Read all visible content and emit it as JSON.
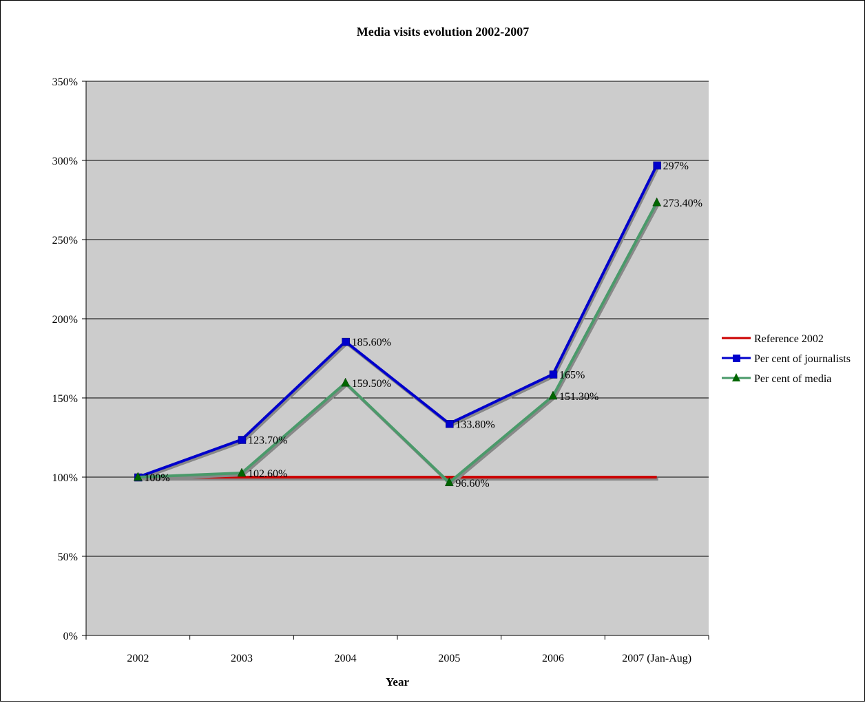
{
  "chart_data": {
    "type": "line",
    "title": "Media visits evolution 2002-2007",
    "xlabel": "Year",
    "ylabel": "",
    "categories": [
      "2002",
      "2003",
      "2004",
      "2005",
      "2006",
      "2007 (Jan-Aug)"
    ],
    "y_ticks": [
      "0%",
      "50%",
      "100%",
      "150%",
      "200%",
      "250%",
      "300%",
      "350%"
    ],
    "ylim": [
      0,
      350
    ],
    "grid": true,
    "legend_position": "right",
    "series": [
      {
        "name": "Reference 2002",
        "color": "#cc0000",
        "marker": "none",
        "values": [
          100,
          100,
          100,
          100,
          100,
          100
        ],
        "labels": [
          "",
          "",
          "",
          "",
          "",
          ""
        ]
      },
      {
        "name": "Per cent of journalists",
        "color": "#0000cc",
        "marker": "square",
        "values": [
          100,
          123.7,
          185.6,
          133.8,
          165,
          297
        ],
        "labels": [
          "100%",
          "123.70%",
          "185.60%",
          "133.80%",
          "165%",
          "297%"
        ]
      },
      {
        "name": "Per cent of media",
        "color": "#4a9a6a",
        "marker_color": "#006600",
        "marker": "triangle",
        "values": [
          100,
          102.6,
          159.5,
          96.6,
          151.3,
          273.4
        ],
        "labels": [
          "100%",
          "102.60%",
          "159.50%",
          "96.60%",
          "151.30%",
          "273.40%"
        ]
      }
    ]
  }
}
